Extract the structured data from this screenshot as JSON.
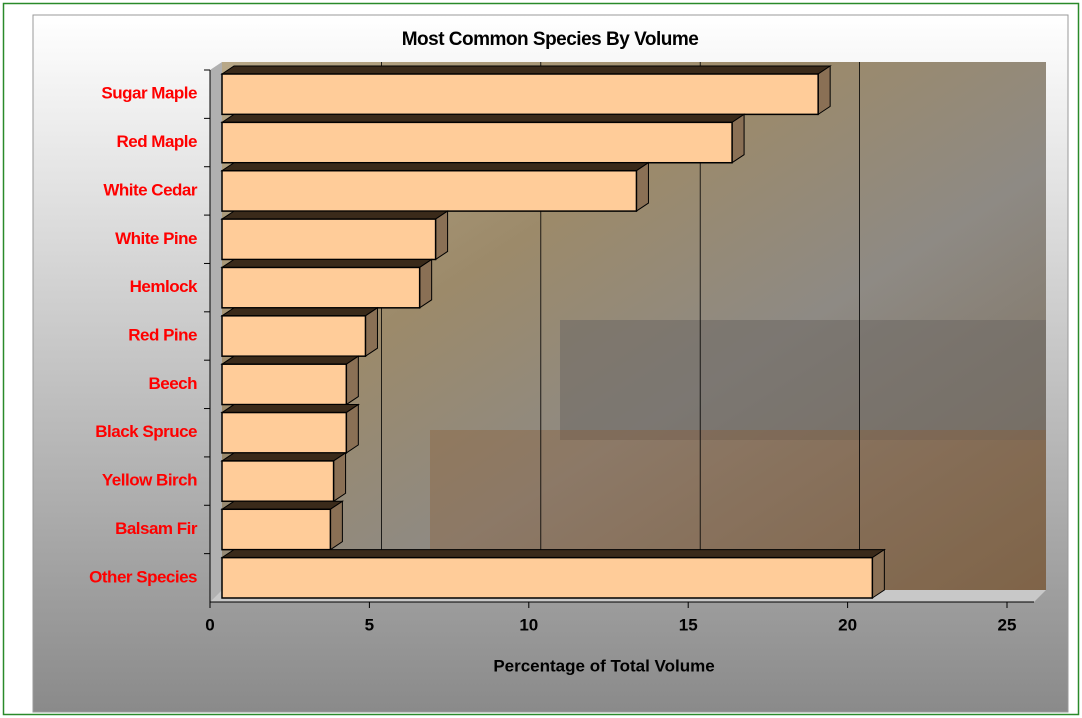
{
  "chart_data": {
    "type": "bar3d",
    "orientation": "horizontal",
    "title": "Most Common Species By Volume",
    "xlabel": "Percentage of Total Volume",
    "categories": [
      "Sugar Maple",
      "Red Maple",
      "White Cedar",
      "White Pine",
      "Hemlock",
      "Red Pine",
      "Beech",
      "Black Spruce",
      "Yellow Birch",
      "Balsam Fir",
      "Other Species"
    ],
    "values": [
      18.7,
      16.0,
      13.0,
      6.7,
      6.2,
      4.5,
      3.9,
      3.9,
      3.5,
      3.4,
      20.4
    ],
    "color": "#ffcc99",
    "xlim": [
      0,
      25
    ],
    "xticks": [
      0,
      5,
      10,
      15,
      20,
      25
    ],
    "grid": true
  }
}
